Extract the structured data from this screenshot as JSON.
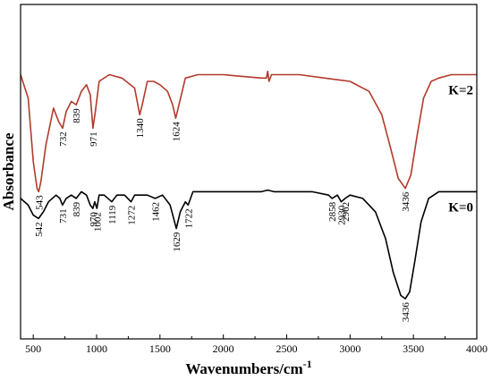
{
  "chart_data": {
    "type": "line",
    "title": "",
    "xlabel": "Wavenumbers/cm",
    "xlabel_superscript": "-1",
    "ylabel": "Absorbance",
    "xlim": [
      400,
      4000
    ],
    "ylim": [
      0,
      1
    ],
    "x_ticks": [
      "500",
      "1000",
      "1500",
      "2000",
      "2500",
      "3000",
      "3500",
      "4000"
    ],
    "y_ticks_shown": false,
    "grid": false,
    "legend": "none",
    "series": [
      {
        "name": "K=2",
        "color": "#b23a2a",
        "points": [
          [
            400,
            0.79
          ],
          [
            460,
            0.72
          ],
          [
            500,
            0.53
          ],
          [
            530,
            0.45
          ],
          [
            543,
            0.44
          ],
          [
            560,
            0.47
          ],
          [
            600,
            0.58
          ],
          [
            660,
            0.69
          ],
          [
            700,
            0.65
          ],
          [
            732,
            0.63
          ],
          [
            760,
            0.68
          ],
          [
            800,
            0.71
          ],
          [
            839,
            0.7
          ],
          [
            880,
            0.74
          ],
          [
            920,
            0.76
          ],
          [
            950,
            0.73
          ],
          [
            971,
            0.63
          ],
          [
            990,
            0.68
          ],
          [
            1020,
            0.77
          ],
          [
            1100,
            0.79
          ],
          [
            1200,
            0.78
          ],
          [
            1300,
            0.75
          ],
          [
            1340,
            0.67
          ],
          [
            1360,
            0.7
          ],
          [
            1400,
            0.77
          ],
          [
            1450,
            0.77
          ],
          [
            1500,
            0.76
          ],
          [
            1560,
            0.74
          ],
          [
            1600,
            0.7
          ],
          [
            1624,
            0.66
          ],
          [
            1650,
            0.7
          ],
          [
            1700,
            0.78
          ],
          [
            1800,
            0.79
          ],
          [
            2000,
            0.79
          ],
          [
            2300,
            0.78
          ],
          [
            2340,
            0.78
          ],
          [
            2350,
            0.8
          ],
          [
            2360,
            0.77
          ],
          [
            2380,
            0.79
          ],
          [
            2600,
            0.79
          ],
          [
            2800,
            0.78
          ],
          [
            3000,
            0.77
          ],
          [
            3150,
            0.74
          ],
          [
            3250,
            0.67
          ],
          [
            3320,
            0.57
          ],
          [
            3380,
            0.48
          ],
          [
            3436,
            0.45
          ],
          [
            3480,
            0.49
          ],
          [
            3530,
            0.61
          ],
          [
            3580,
            0.72
          ],
          [
            3640,
            0.77
          ],
          [
            3700,
            0.78
          ],
          [
            3800,
            0.79
          ],
          [
            3900,
            0.79
          ],
          [
            4000,
            0.79
          ]
        ]
      },
      {
        "name": "K=0",
        "color": "#000000",
        "points": [
          [
            400,
            0.42
          ],
          [
            460,
            0.4
          ],
          [
            500,
            0.37
          ],
          [
            542,
            0.36
          ],
          [
            580,
            0.38
          ],
          [
            620,
            0.41
          ],
          [
            680,
            0.43
          ],
          [
            710,
            0.42
          ],
          [
            731,
            0.4
          ],
          [
            760,
            0.42
          ],
          [
            800,
            0.43
          ],
          [
            839,
            0.42
          ],
          [
            880,
            0.44
          ],
          [
            920,
            0.43
          ],
          [
            950,
            0.4
          ],
          [
            970,
            0.39
          ],
          [
            985,
            0.41
          ],
          [
            1002,
            0.39
          ],
          [
            1020,
            0.43
          ],
          [
            1060,
            0.43
          ],
          [
            1119,
            0.41
          ],
          [
            1160,
            0.43
          ],
          [
            1220,
            0.43
          ],
          [
            1272,
            0.41
          ],
          [
            1300,
            0.43
          ],
          [
            1400,
            0.43
          ],
          [
            1462,
            0.42
          ],
          [
            1520,
            0.43
          ],
          [
            1580,
            0.4
          ],
          [
            1629,
            0.33
          ],
          [
            1660,
            0.38
          ],
          [
            1700,
            0.41
          ],
          [
            1722,
            0.4
          ],
          [
            1760,
            0.44
          ],
          [
            2000,
            0.44
          ],
          [
            2300,
            0.44
          ],
          [
            2350,
            0.445
          ],
          [
            2400,
            0.44
          ],
          [
            2700,
            0.44
          ],
          [
            2830,
            0.43
          ],
          [
            2858,
            0.42
          ],
          [
            2900,
            0.43
          ],
          [
            2930,
            0.41
          ],
          [
            2962,
            0.42
          ],
          [
            3000,
            0.43
          ],
          [
            3100,
            0.42
          ],
          [
            3200,
            0.38
          ],
          [
            3280,
            0.3
          ],
          [
            3340,
            0.2
          ],
          [
            3400,
            0.13
          ],
          [
            3436,
            0.12
          ],
          [
            3470,
            0.14
          ],
          [
            3510,
            0.23
          ],
          [
            3560,
            0.35
          ],
          [
            3620,
            0.42
          ],
          [
            3700,
            0.44
          ],
          [
            3800,
            0.44
          ],
          [
            3900,
            0.44
          ],
          [
            4000,
            0.44
          ]
        ]
      }
    ],
    "peak_labels": [
      {
        "series": "K=2",
        "text": "543",
        "x": 543
      },
      {
        "series": "K=2",
        "text": "732",
        "x": 732
      },
      {
        "series": "K=2",
        "text": "839",
        "x": 839
      },
      {
        "series": "K=2",
        "text": "971",
        "x": 971
      },
      {
        "series": "K=2",
        "text": "1340",
        "x": 1340
      },
      {
        "series": "K=2",
        "text": "1624",
        "x": 1624
      },
      {
        "series": "K=2",
        "text": "3436",
        "x": 3436
      },
      {
        "series": "K=0",
        "text": "542",
        "x": 542
      },
      {
        "series": "K=0",
        "text": "731",
        "x": 731
      },
      {
        "series": "K=0",
        "text": "839",
        "x": 839
      },
      {
        "series": "K=0",
        "text": "970",
        "x": 970
      },
      {
        "series": "K=0",
        "text": "1002",
        "x": 1002
      },
      {
        "series": "K=0",
        "text": "1119",
        "x": 1119
      },
      {
        "series": "K=0",
        "text": "1272",
        "x": 1272
      },
      {
        "series": "K=0",
        "text": "1462",
        "x": 1462
      },
      {
        "series": "K=0",
        "text": "1629",
        "x": 1629
      },
      {
        "series": "K=0",
        "text": "1722",
        "x": 1722
      },
      {
        "series": "K=0",
        "text": "2858",
        "x": 2858
      },
      {
        "series": "K=0",
        "text": "2930",
        "x": 2930
      },
      {
        "series": "K=0",
        "text": "2962",
        "x": 2962
      },
      {
        "series": "K=0",
        "text": "3436",
        "x": 3436
      }
    ]
  }
}
